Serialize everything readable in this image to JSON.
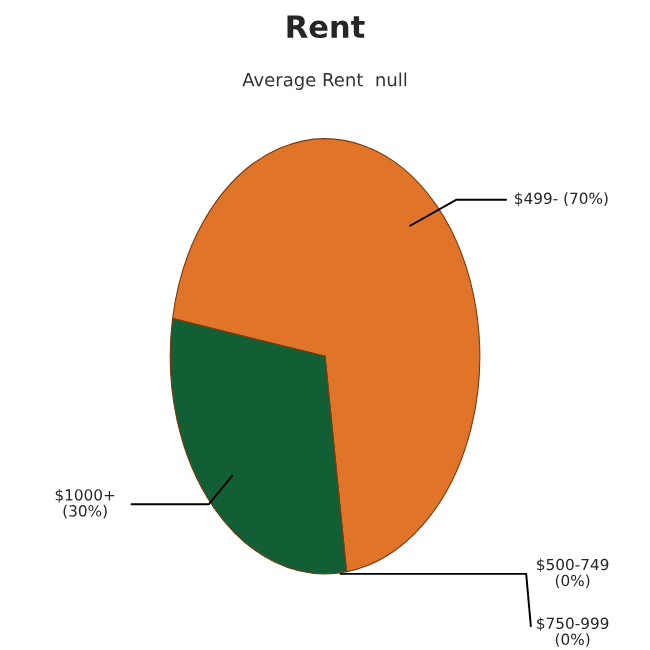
{
  "chart_data": {
    "type": "pie",
    "title": "Rent",
    "subtitle": "Average Rent  null",
    "categories": [
      "$499-",
      "$500-749",
      "$750-999",
      "$1000+"
    ],
    "values": [
      70,
      0,
      0,
      30
    ],
    "value_labels": [
      "(70%)",
      "(0%)",
      "(0%)",
      "(30%)"
    ],
    "colors": [
      "#e07428",
      "#e07428",
      "#e07428",
      "#125e35"
    ]
  }
}
